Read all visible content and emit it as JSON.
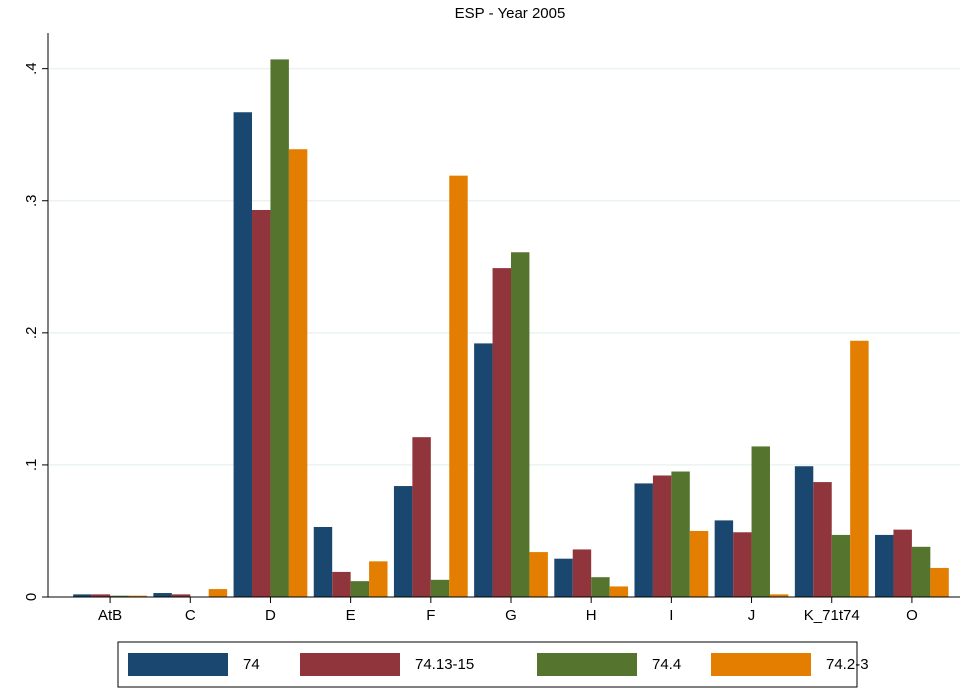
{
  "chart_data": {
    "type": "bar",
    "title": "ESP - Year 2005",
    "categories": [
      "AtB",
      "C",
      "D",
      "E",
      "F",
      "G",
      "H",
      "I",
      "J",
      "K_71t74",
      "O"
    ],
    "series": [
      {
        "name": "74",
        "color": "#1a476f",
        "values": [
          0.002,
          0.003,
          0.367,
          0.053,
          0.084,
          0.192,
          0.029,
          0.086,
          0.058,
          0.099,
          0.047
        ]
      },
      {
        "name": "74.13-15",
        "color": "#90353b",
        "values": [
          0.002,
          0.002,
          0.293,
          0.019,
          0.121,
          0.249,
          0.036,
          0.092,
          0.049,
          0.087,
          0.051
        ]
      },
      {
        "name": "74.4",
        "color": "#55752f",
        "values": [
          0.001,
          0,
          0.407,
          0.012,
          0.013,
          0.261,
          0.015,
          0.095,
          0.114,
          0.047,
          0.038
        ]
      },
      {
        "name": "74.2-3",
        "color": "#e37e00",
        "values": [
          0.001,
          0.006,
          0.339,
          0.027,
          0.319,
          0.034,
          0.008,
          0.05,
          0.002,
          0.194,
          0.022
        ]
      }
    ],
    "ylim": [
      0,
      0.427
    ],
    "yticks": [
      0,
      {
        "value": 0.1,
        "label": ".1"
      },
      {
        "value": 0.2,
        "label": ".2"
      },
      {
        "value": 0.3,
        "label": ".3"
      },
      {
        "value": 0.4,
        "label": ".4"
      }
    ],
    "grid": true
  }
}
